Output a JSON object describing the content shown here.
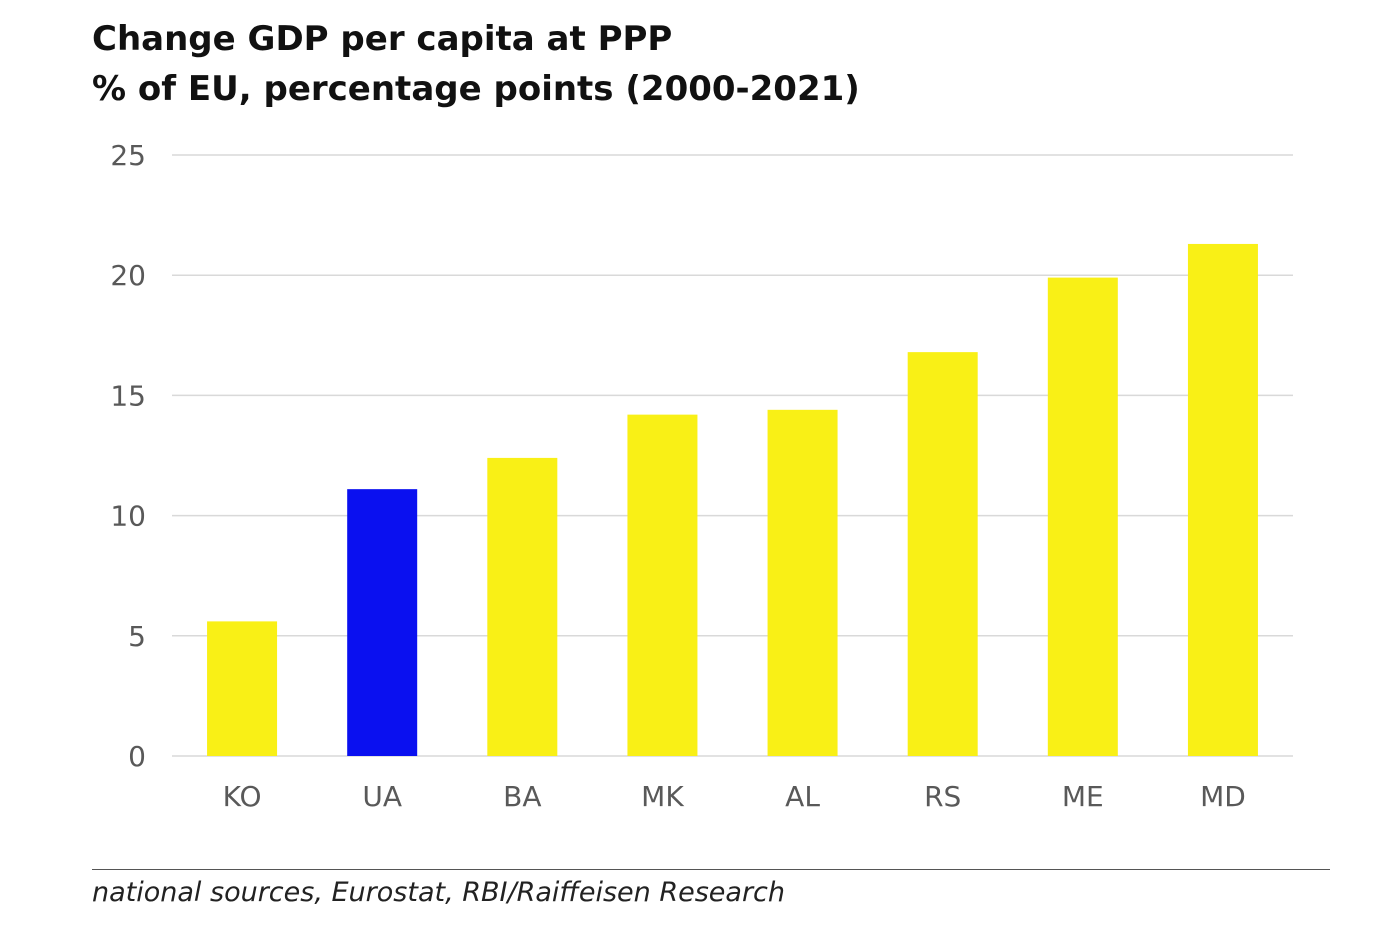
{
  "header": {
    "title_line1": "Change GDP per capita at PPP",
    "title_line2": "% of EU, percentage points (2000-2021)"
  },
  "footer": {
    "source": "national sources, Eurostat, RBI/Raiffeisen Research"
  },
  "colors": {
    "bar_default": "#F9F016",
    "bar_highlight": "#0A10F0",
    "gridline": "#D9D9D9",
    "tick_label": "#595959"
  },
  "chart_data": {
    "type": "bar",
    "title": "Change GDP per capita at PPP\n% of EU, percentage points (2000-2021)",
    "xlabel": "",
    "ylabel": "",
    "categories": [
      "KO",
      "UA",
      "BA",
      "MK",
      "AL",
      "RS",
      "ME",
      "MD"
    ],
    "values": [
      5.6,
      11.1,
      12.4,
      14.2,
      14.4,
      16.8,
      19.9,
      21.3
    ],
    "highlight": [
      "UA"
    ],
    "ylim": [
      0,
      25
    ],
    "yticks": [
      0,
      5,
      10,
      15,
      20,
      25
    ],
    "grid": true,
    "legend": "none"
  }
}
